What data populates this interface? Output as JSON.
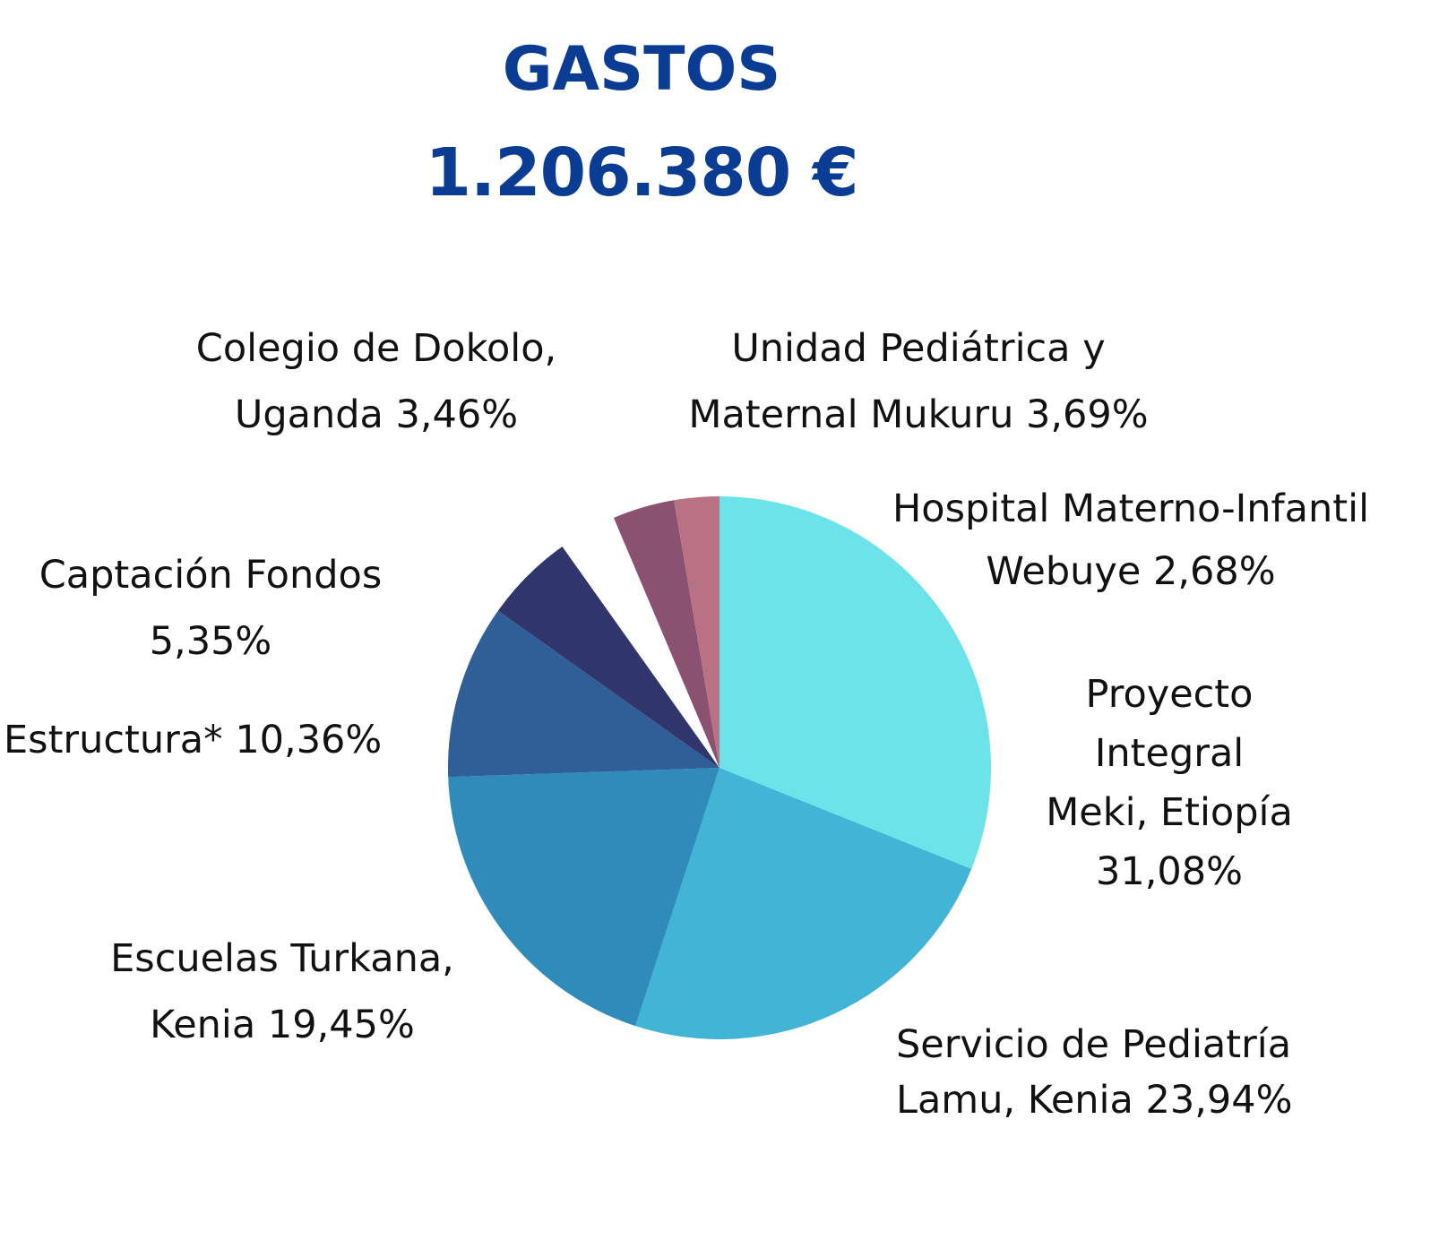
{
  "chart_data": {
    "type": "pie",
    "title": "GASTOS",
    "subtitle": "1.206.380 €",
    "start": "12 o'clock, clockwise",
    "slices": [
      {
        "name": "Proyecto Integral Meki, Etiopía",
        "value": 31.08,
        "label_lines": [
          "Proyecto",
          "Integral",
          "Meki, Etiopía",
          "31,08%"
        ],
        "color": "#6BE3E8"
      },
      {
        "name": "Servicio de Pediatría Lamu, Kenia",
        "value": 23.94,
        "label_lines": [
          "Servicio de Pediatría",
          "Lamu, Kenia  23,94%"
        ],
        "color": "#42B5D6"
      },
      {
        "name": "Escuelas Turkana, Kenia",
        "value": 19.45,
        "label_lines": [
          "Escuelas Turkana,",
          "Kenia  19,45%"
        ],
        "color": "#2E8BBA"
      },
      {
        "name": "Estructura*",
        "value": 10.36,
        "label_lines": [
          "Estructura* 10,36%"
        ],
        "color": "#2F5F96"
      },
      {
        "name": "Captación Fondos",
        "value": 5.35,
        "label_lines": [
          "Captación Fondos",
          "5,35%"
        ],
        "color": "#30356B"
      },
      {
        "name": "Colegio de Dokolo, Uganda",
        "value": 3.46,
        "label_lines": [
          "Colegio de Dokolo,",
          "Uganda 3,46%"
        ],
        "color": "#FFFFFF"
      },
      {
        "name": "Unidad Pediátrica y Maternal Mukuru",
        "value": 3.69,
        "label_lines": [
          "Unidad Pediátrica y",
          "Maternal Mukuru 3,69%"
        ],
        "color": "#8A5270"
      },
      {
        "name": "Hospital Materno-Infantil Webuye",
        "value": 2.68,
        "label_lines": [
          "Hospital Materno-Infantil",
          "Webuye 2,68%"
        ],
        "color": "#B87284"
      }
    ]
  }
}
